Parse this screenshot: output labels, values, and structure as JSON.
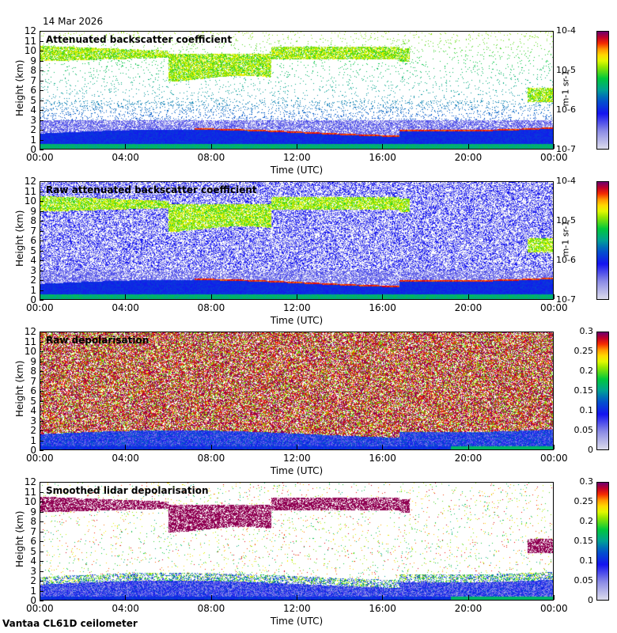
{
  "date": "14 Mar 2026",
  "footer": "Vantaa CL61D ceilometer",
  "chart_data": [
    {
      "type": "heatmap",
      "title": "Attenuated backscatter coefficient",
      "xlabel": "Time (UTC)",
      "ylabel": "Height (km)",
      "xticks": [
        "00:00",
        "04:00",
        "08:00",
        "12:00",
        "16:00",
        "20:00",
        "00:00"
      ],
      "yticks": [
        "0",
        "1",
        "2",
        "3",
        "4",
        "5",
        "6",
        "7",
        "8",
        "9",
        "10",
        "11",
        "12"
      ],
      "ylim": [
        0,
        12
      ],
      "colorbar": {
        "scale": "log",
        "ticks": [
          "10-7",
          "10-6",
          "10-5",
          "10-4"
        ],
        "range": [
          1e-07,
          0.0001
        ],
        "unit": "m-1 sr-1"
      },
      "mode": "beta"
    },
    {
      "type": "heatmap",
      "title": "Raw attenuated backscatter coefficient",
      "xlabel": "Time (UTC)",
      "ylabel": "Height (km)",
      "xticks": [
        "00:00",
        "04:00",
        "08:00",
        "12:00",
        "16:00",
        "20:00",
        "00:00"
      ],
      "yticks": [
        "0",
        "1",
        "2",
        "3",
        "4",
        "5",
        "6",
        "7",
        "8",
        "9",
        "10",
        "11",
        "12"
      ],
      "ylim": [
        0,
        12
      ],
      "colorbar": {
        "scale": "log",
        "ticks": [
          "10-7",
          "10-6",
          "10-5",
          "10-4"
        ],
        "range": [
          1e-07,
          0.0001
        ],
        "unit": "m-1 sr-1"
      },
      "mode": "betaraw"
    },
    {
      "type": "heatmap",
      "title": "Raw depolarisation",
      "xlabel": "Time (UTC)",
      "ylabel": "Height (km)",
      "xticks": [
        "00:00",
        "04:00",
        "08:00",
        "12:00",
        "16:00",
        "20:00",
        "00:00"
      ],
      "yticks": [
        "0",
        "1",
        "2",
        "3",
        "4",
        "5",
        "6",
        "7",
        "8",
        "9",
        "10",
        "11",
        "12"
      ],
      "ylim": [
        0,
        12
      ],
      "colorbar": {
        "scale": "linear",
        "ticks": [
          "0",
          "0.05",
          "0.1",
          "0.15",
          "0.2",
          "0.25",
          "0.3"
        ],
        "range": [
          0,
          0.3
        ],
        "unit": ""
      },
      "mode": "depraw"
    },
    {
      "type": "heatmap",
      "title": "Smoothed lidar depolarisation",
      "xlabel": "Time (UTC)",
      "ylabel": "Height (km)",
      "xticks": [
        "00:00",
        "04:00",
        "08:00",
        "12:00",
        "16:00",
        "20:00",
        "00:00"
      ],
      "yticks": [
        "0",
        "1",
        "2",
        "3",
        "4",
        "5",
        "6",
        "7",
        "8",
        "9",
        "10",
        "11",
        "12"
      ],
      "ylim": [
        0,
        12
      ],
      "colorbar": {
        "scale": "linear",
        "ticks": [
          "0",
          "0.05",
          "0.1",
          "0.15",
          "0.2",
          "0.25",
          "0.3"
        ],
        "range": [
          0,
          0.3
        ],
        "unit": ""
      },
      "mode": "dep"
    }
  ]
}
